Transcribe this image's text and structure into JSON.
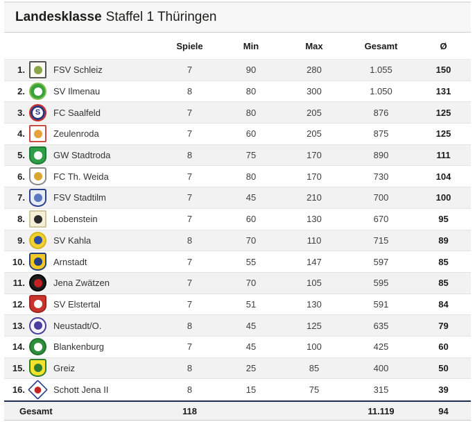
{
  "title": {
    "brand": "Landesklasse",
    "rest": "Staffel 1 Thüringen"
  },
  "header": {
    "cols": [
      "Spiele",
      "Min",
      "Max",
      "Gesamt",
      "Ø"
    ]
  },
  "colors": {
    "accent_navy": "#1e2b55",
    "row_alt": "#f2f2f2",
    "row_border": "#e3e3e3",
    "titlebar_bg": "#f7f7f7"
  },
  "rows": [
    {
      "rank": "1.",
      "team": "FSV Schleiz",
      "spiele": "7",
      "min": "90",
      "max": "280",
      "gesamt": "1.055",
      "avg": "150",
      "crest": {
        "icon": "crest-fsv-schleiz-icon",
        "shape": "square",
        "bg": "#fbfbf4",
        "border": "#555555",
        "ring": "",
        "accent": "#8aa54a",
        "glyph": ""
      }
    },
    {
      "rank": "2.",
      "team": "SV Ilmenau",
      "spiele": "8",
      "min": "80",
      "max": "300",
      "gesamt": "1.050",
      "avg": "131",
      "crest": {
        "icon": "crest-sv-ilmenau-icon",
        "shape": "circle",
        "bg": "#38a23d",
        "border": "#7dbf4e",
        "ring": "",
        "accent": "#ffffff",
        "glyph": ""
      }
    },
    {
      "rank": "3.",
      "team": "FC Saalfeld",
      "spiele": "7",
      "min": "80",
      "max": "205",
      "gesamt": "876",
      "avg": "125",
      "crest": {
        "icon": "crest-fc-saalfeld-icon",
        "shape": "circle",
        "bg": "#ffffff",
        "border": "#cc2b2b",
        "ring": "#27367a",
        "accent": "#27367a",
        "glyph": "S"
      }
    },
    {
      "rank": "4.",
      "team": "Zeulenroda",
      "spiele": "7",
      "min": "60",
      "max": "205",
      "gesamt": "875",
      "avg": "125",
      "crest": {
        "icon": "crest-zeulenroda-icon",
        "shape": "square",
        "bg": "#fdfdfd",
        "border": "#c94a42",
        "ring": "",
        "accent": "#e8a13c",
        "glyph": ""
      }
    },
    {
      "rank": "5.",
      "team": "GW Stadtroda",
      "spiele": "8",
      "min": "75",
      "max": "170",
      "gesamt": "890",
      "avg": "111",
      "crest": {
        "icon": "crest-gw-stadtroda-icon",
        "shape": "shield",
        "bg": "#2f9e46",
        "border": "#1f7d33",
        "ring": "",
        "accent": "#ffffff",
        "glyph": ""
      }
    },
    {
      "rank": "6.",
      "team": "FC Th. Weida",
      "spiele": "7",
      "min": "80",
      "max": "170",
      "gesamt": "730",
      "avg": "104",
      "crest": {
        "icon": "crest-fc-th-weida-icon",
        "shape": "shield",
        "bg": "#fdfdfd",
        "border": "#8a8a8a",
        "ring": "",
        "accent": "#d9a62e",
        "glyph": ""
      }
    },
    {
      "rank": "7.",
      "team": "FSV Stadtilm",
      "spiele": "7",
      "min": "45",
      "max": "210",
      "gesamt": "700",
      "avg": "100",
      "crest": {
        "icon": "crest-fsv-stadtilm-icon",
        "shape": "shield",
        "bg": "#e8ecf5",
        "border": "#2b3f8c",
        "ring": "",
        "accent": "#5a77c0",
        "glyph": ""
      }
    },
    {
      "rank": "8.",
      "team": "Lobenstein",
      "spiele": "7",
      "min": "60",
      "max": "130",
      "gesamt": "670",
      "avg": "95",
      "crest": {
        "icon": "crest-lobenstein-icon",
        "shape": "square",
        "bg": "#f6f0d8",
        "border": "#cfc89e",
        "ring": "",
        "accent": "#2b2b2b",
        "glyph": ""
      }
    },
    {
      "rank": "9.",
      "team": "SV Kahla",
      "spiele": "8",
      "min": "70",
      "max": "110",
      "gesamt": "715",
      "avg": "89",
      "crest": {
        "icon": "crest-sv-kahla-icon",
        "shape": "circle",
        "bg": "#f2d12e",
        "border": "#d4b61f",
        "ring": "",
        "accent": "#2b4ea2",
        "glyph": ""
      }
    },
    {
      "rank": "10.",
      "team": "Arnstadt",
      "spiele": "7",
      "min": "55",
      "max": "147",
      "gesamt": "597",
      "avg": "85",
      "crest": {
        "icon": "crest-arnstadt-icon",
        "shape": "shield",
        "bg": "#f0c826",
        "border": "#24407e",
        "ring": "",
        "accent": "#24407e",
        "glyph": ""
      }
    },
    {
      "rank": "11.",
      "team": "Jena Zwätzen",
      "spiele": "7",
      "min": "70",
      "max": "105",
      "gesamt": "595",
      "avg": "85",
      "crest": {
        "icon": "crest-jena-zwaetzen-icon",
        "shape": "circle",
        "bg": "#1d1d1d",
        "border": "#000000",
        "ring": "",
        "accent": "#c32222",
        "glyph": ""
      }
    },
    {
      "rank": "12.",
      "team": "SV Elstertal",
      "spiele": "7",
      "min": "51",
      "max": "130",
      "gesamt": "591",
      "avg": "84",
      "crest": {
        "icon": "crest-sv-elstertal-icon",
        "shape": "shield",
        "bg": "#c8332b",
        "border": "#a02620",
        "ring": "",
        "accent": "#ffffff",
        "glyph": ""
      }
    },
    {
      "rank": "13.",
      "team": "Neustadt/O.",
      "spiele": "8",
      "min": "45",
      "max": "125",
      "gesamt": "635",
      "avg": "79",
      "crest": {
        "icon": "crest-neustadt-o-icon",
        "shape": "circle",
        "bg": "#f4f4fa",
        "border": "#4a3f9e",
        "ring": "",
        "accent": "#4a3f9e",
        "glyph": ""
      }
    },
    {
      "rank": "14.",
      "team": "Blankenburg",
      "spiele": "7",
      "min": "45",
      "max": "100",
      "gesamt": "425",
      "avg": "60",
      "crest": {
        "icon": "crest-blankenburg-icon",
        "shape": "circle",
        "bg": "#2e8f3c",
        "border": "#21722e",
        "ring": "",
        "accent": "#ffffff",
        "glyph": ""
      }
    },
    {
      "rank": "15.",
      "team": "Greiz",
      "spiele": "8",
      "min": "25",
      "max": "85",
      "gesamt": "400",
      "avg": "50",
      "crest": {
        "icon": "crest-greiz-icon",
        "shape": "shield",
        "bg": "#f3e32a",
        "border": "#2e7d32",
        "ring": "",
        "accent": "#2e7d32",
        "glyph": ""
      }
    },
    {
      "rank": "16.",
      "team": "Schott Jena II",
      "spiele": "8",
      "min": "15",
      "max": "75",
      "gesamt": "315",
      "avg": "39",
      "crest": {
        "icon": "crest-schott-jena-icon",
        "shape": "diamond",
        "bg": "#ffffff",
        "border": "#2b3f8c",
        "ring": "",
        "accent": "#c32222",
        "glyph": ""
      }
    }
  ],
  "footer": {
    "label": "Gesamt",
    "spiele": "118",
    "min": "",
    "max": "",
    "gesamt": "11.119",
    "avg": "94"
  }
}
